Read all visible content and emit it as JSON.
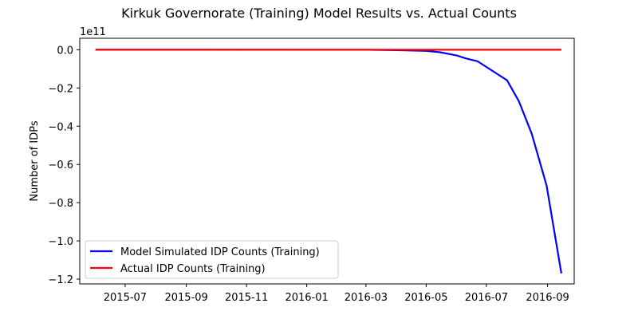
{
  "chart_data": {
    "type": "line",
    "title": "Kirkuk Governorate (Training) Model Results vs. Actual Counts",
    "xlabel": "",
    "ylabel": "Number of IDPs",
    "y_offset_label": "1e11",
    "y_scale_factor": 100000000000,
    "xlim": [
      "2015-05-16",
      "2016-09-28"
    ],
    "ylim": [
      -122500000000,
      6000000000
    ],
    "x_ticks": [
      "2015-07-01",
      "2015-09-01",
      "2015-11-01",
      "2016-01-01",
      "2016-03-01",
      "2016-05-01",
      "2016-07-01",
      "2016-09-01"
    ],
    "x_tick_labels": [
      "2015-07",
      "2015-09",
      "2015-11",
      "2016-01",
      "2016-03",
      "2016-05",
      "2016-07",
      "2016-09"
    ],
    "y_ticks": [
      0,
      -20000000000,
      -40000000000,
      -60000000000,
      -80000000000,
      -100000000000,
      -120000000000
    ],
    "y_tick_labels": [
      "0.0",
      "−0.2",
      "−0.4",
      "−0.6",
      "−0.8",
      "−1.0",
      "−1.2"
    ],
    "grid": false,
    "legend_position": "lower-left",
    "series": [
      {
        "name": "Model Simulated IDP Counts (Training)",
        "color": "#0000ff",
        "points": [
          [
            "2015-06-01",
            0
          ],
          [
            "2016-03-01",
            -20000000
          ],
          [
            "2016-04-01",
            -200000000
          ],
          [
            "2016-05-01",
            -600000000
          ],
          [
            "2016-05-15",
            -1300000000
          ],
          [
            "2016-06-01",
            -3000000000
          ],
          [
            "2016-06-10",
            -4500000000
          ],
          [
            "2016-06-22",
            -6000000000
          ],
          [
            "2016-07-22",
            -16000000000
          ],
          [
            "2016-08-03",
            -27000000000
          ],
          [
            "2016-08-16",
            -44000000000
          ],
          [
            "2016-08-31",
            -71000000000
          ],
          [
            "2016-09-15",
            -117000000000
          ]
        ]
      },
      {
        "name": "Actual IDP Counts (Training)",
        "color": "#ff0000",
        "points": [
          [
            "2015-06-01",
            0
          ],
          [
            "2016-09-15",
            0
          ]
        ]
      }
    ]
  }
}
